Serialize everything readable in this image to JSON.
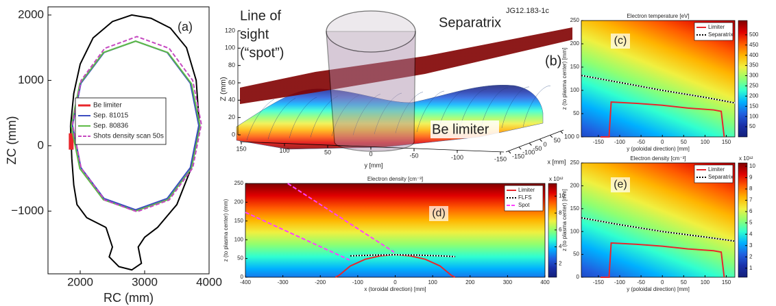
{
  "chart_data": [
    {
      "type": "line",
      "label": "(a)",
      "xlabel": "RC (mm)",
      "ylabel": "ZC (mm)",
      "xlim": [
        1500,
        4000
      ],
      "ylim": [
        -1960,
        2125
      ],
      "xticks": [
        2000,
        3000,
        4000
      ],
      "yticks": [
        2000,
        1000,
        0,
        {
          "value": -1000,
          "label": "−1000"
        }
      ],
      "legend": "center left",
      "series": [
        {
          "color": "#000000",
          "x": [
            2400,
            2100,
            1950,
            1900,
            1870,
            1850,
            1900,
            2000,
            2200,
            2500,
            2800,
            3100,
            3400,
            3650,
            3800,
            3850,
            3700,
            3500,
            3200,
            3000,
            2900,
            2950,
            2800,
            2600,
            2450,
            2500,
            2400
          ],
          "y": [
            -1250,
            -1100,
            -900,
            -600,
            -200,
            300,
            800,
            1250,
            1650,
            1900,
            2000,
            1950,
            1800,
            1500,
            1000,
            300,
            -400,
            -900,
            -1250,
            -1400,
            -1550,
            -1800,
            -1900,
            -1850,
            -1700,
            -1550,
            -1250
          ]
        },
        {
          "name": "Be limiter",
          "color": "#e8262b",
          "width": 7,
          "x": [
            1860,
            1860
          ],
          "y": [
            -60,
            190
          ]
        },
        {
          "name": "Sep. 81015",
          "color": "#3b4cc0",
          "x": [
            3840,
            3709,
            3350,
            2860,
            2370,
            2011,
            1880,
            2011,
            2370,
            2860,
            3350,
            3709,
            3840
          ],
          "y": [
            310,
            955,
            1427,
            1600,
            1427,
            955,
            310,
            -335,
            -807,
            -980,
            -807,
            -335,
            310
          ]
        },
        {
          "name": "Sep. 80836",
          "color": "#5dbb46",
          "x": [
            3860,
            3726,
            3360,
            2860,
            2360,
            1994,
            1860,
            1994,
            2360,
            2860,
            3360,
            3726,
            3860
          ],
          "y": [
            300,
            950,
            1426,
            1600,
            1426,
            950,
            300,
            -350,
            -826,
            -1000,
            -826,
            -350,
            300
          ]
        },
        {
          "name": "Shots density scan 50s",
          "color": "#c548c0",
          "dash": "dashed",
          "x": [
            3880,
            3746,
            3380,
            2880,
            2380,
            2014,
            1880,
            2014,
            2380,
            2880,
            3380,
            3746,
            3880
          ],
          "y": [
            330,
            1000,
            1490,
            1670,
            1490,
            1000,
            330,
            -340,
            -830,
            -1010,
            -830,
            -340,
            330
          ]
        }
      ]
    },
    {
      "type": "surface3d",
      "label": "(b)",
      "stamp": "JG12.183-1c",
      "line_of_sight": [
        "Line of",
        "sight",
        "(“spot”)"
      ],
      "separatrix_label": "Separatrix",
      "limiter_label": "Be limiter",
      "zlabel": "Z (mm)",
      "zlim": [
        0,
        120
      ],
      "zticks": [
        0,
        20,
        40,
        60,
        80,
        100,
        120
      ],
      "ylabel": "y [mm]",
      "ylim": [
        150,
        -150
      ],
      "yticks": [
        150,
        100,
        50,
        0,
        -50,
        -100,
        -150
      ],
      "xlabel": "x [mm]",
      "xlim": [
        -150,
        100
      ],
      "xticks": [
        -150,
        -100,
        -50,
        0,
        50,
        100
      ]
    },
    {
      "type": "heatmap",
      "label": "(c)",
      "title": "Electron temperature [eV]",
      "colormap": "jet",
      "xlabel": "y (poloidal direction) [mm]",
      "ylabel": "z (to plasma center) [mm]",
      "xlim": [
        -190,
        170
      ],
      "ylim": [
        0,
        250
      ],
      "xticks": [
        -150,
        -100,
        -50,
        0,
        50,
        100,
        150
      ],
      "yticks": [
        0,
        50,
        100,
        150,
        200,
        250
      ],
      "clim": [
        0,
        570
      ],
      "cticks": [
        50,
        100,
        150,
        200,
        250,
        300,
        350,
        400,
        450,
        500
      ],
      "legend": "upper right",
      "series": [
        {
          "name": "Limiter",
          "color": "#e8262b",
          "x": [
            -145,
            -125,
            -120,
            -60,
            0,
            60,
            120,
            138,
            145
          ],
          "y": [
            0,
            0,
            75,
            72,
            68,
            62,
            58,
            55,
            0
          ]
        },
        {
          "name": "Separatrix",
          "color": "#000000",
          "dash": "dotted",
          "x": [
            -190,
            -100,
            0,
            100,
            170
          ],
          "y": [
            132,
            117,
            100,
            85,
            73
          ]
        }
      ]
    },
    {
      "type": "heatmap",
      "label": "(d)",
      "title": "Electron density [cm⁻³]",
      "colormap": "jet",
      "cbar_multiplier": "x 10¹²",
      "xlabel": "x (toroidal direction) [mm]",
      "ylabel": "z (to plasma center) (mm)",
      "xlim": [
        -400,
        400
      ],
      "ylim": [
        0,
        250
      ],
      "xticks": [
        -400,
        -300,
        -200,
        -100,
        0,
        100,
        200,
        300,
        400
      ],
      "yticks": [
        0,
        50,
        100,
        150,
        200,
        250
      ],
      "clim": [
        0.4,
        11.5
      ],
      "cticks": [
        2,
        4,
        6,
        8,
        10
      ],
      "legend": "upper right",
      "series": [
        {
          "name": "Limiter",
          "color": "#e8262b",
          "x": [
            -160,
            -150,
            -120,
            -80,
            -40,
            0,
            40,
            80,
            120,
            150,
            160
          ],
          "y": [
            0,
            5,
            30,
            48,
            57,
            60,
            57,
            48,
            30,
            5,
            0
          ]
        },
        {
          "name": "FLFS",
          "color": "#000000",
          "dash": "dotted",
          "x": [
            -120,
            -60,
            0,
            60,
            120,
            160
          ],
          "y": [
            57,
            59,
            60,
            59,
            57,
            55
          ]
        },
        {
          "name": "Spot",
          "color": "#ff40ff",
          "dash": "dashed",
          "x": [
            -400,
            -122,
            null,
            -287,
            -3
          ],
          "y": [
            173,
            46,
            null,
            250,
            67
          ]
        }
      ]
    },
    {
      "type": "heatmap",
      "label": "(e)",
      "title": "Electron density [cm⁻³]",
      "colormap": "jet",
      "cbar_multiplier": "x 10¹²",
      "xlabel": "y (poloidal direction) [mm]",
      "ylabel": "z (to plasma center) [mm]",
      "xlim": [
        -190,
        170
      ],
      "ylim": [
        0,
        250
      ],
      "xticks": [
        -150,
        -100,
        -50,
        0,
        50,
        100,
        150
      ],
      "yticks": [
        0,
        50,
        100,
        150,
        200,
        250
      ],
      "clim": [
        0.2,
        10.3
      ],
      "cticks": [
        1,
        2,
        3,
        4,
        5,
        6,
        7,
        8,
        9,
        10
      ],
      "legend": "upper right",
      "series": [
        {
          "name": "Limiter",
          "color": "#e8262b",
          "x": [
            -145,
            -125,
            -120,
            -60,
            0,
            60,
            120,
            138,
            145
          ],
          "y": [
            0,
            0,
            75,
            72,
            68,
            62,
            58,
            55,
            0
          ]
        },
        {
          "name": "Separatrix",
          "color": "#000000",
          "dash": "dotted",
          "x": [
            -190,
            -100,
            0,
            100,
            170
          ],
          "y": [
            130,
            115,
            100,
            88,
            79
          ]
        }
      ]
    }
  ]
}
